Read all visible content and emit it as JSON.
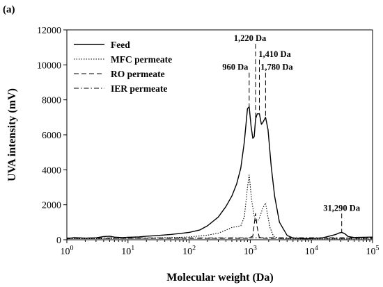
{
  "panel_label": "(a)",
  "chart_data": {
    "type": "line",
    "title": "",
    "xlabel": "Molecular weight (Da)",
    "ylabel": "UVA intensity (mV)",
    "xscale": "log",
    "xlim": [
      1,
      100000
    ],
    "ylim": [
      0,
      12000
    ],
    "x_ticks": [
      {
        "value": 1,
        "base": "10",
        "exp": "0"
      },
      {
        "value": 10,
        "base": "10",
        "exp": "1"
      },
      {
        "value": 100,
        "base": "10",
        "exp": "2"
      },
      {
        "value": 1000,
        "base": "10",
        "exp": "3"
      },
      {
        "value": 10000,
        "base": "10",
        "exp": "4"
      },
      {
        "value": 100000,
        "base": "10",
        "exp": "5"
      }
    ],
    "y_ticks": [
      {
        "value": 0,
        "label": "0"
      },
      {
        "value": 2000,
        "label": "2000"
      },
      {
        "value": 4000,
        "label": "4000"
      },
      {
        "value": 6000,
        "label": "6000"
      },
      {
        "value": 8000,
        "label": "8000"
      },
      {
        "value": 10000,
        "label": "10000"
      },
      {
        "value": 12000,
        "label": "12000"
      }
    ],
    "grid": false,
    "legend_position": "top-left",
    "series": [
      {
        "name": "Feed",
        "style": "solid",
        "points": [
          [
            1,
            50
          ],
          [
            1.3,
            120
          ],
          [
            2,
            90
          ],
          [
            3,
            110
          ],
          [
            4,
            180
          ],
          [
            5,
            200
          ],
          [
            6,
            150
          ],
          [
            8,
            120
          ],
          [
            10,
            140
          ],
          [
            15,
            160
          ],
          [
            20,
            200
          ],
          [
            30,
            240
          ],
          [
            50,
            300
          ],
          [
            80,
            380
          ],
          [
            100,
            420
          ],
          [
            150,
            560
          ],
          [
            200,
            800
          ],
          [
            300,
            1300
          ],
          [
            400,
            1900
          ],
          [
            500,
            2500
          ],
          [
            600,
            3200
          ],
          [
            700,
            4100
          ],
          [
            800,
            5600
          ],
          [
            900,
            7500
          ],
          [
            960,
            7600
          ],
          [
            1030,
            6500
          ],
          [
            1100,
            5800
          ],
          [
            1160,
            5900
          ],
          [
            1220,
            6900
          ],
          [
            1300,
            7200
          ],
          [
            1410,
            7200
          ],
          [
            1520,
            6600
          ],
          [
            1600,
            6700
          ],
          [
            1780,
            7000
          ],
          [
            1950,
            6300
          ],
          [
            2200,
            4200
          ],
          [
            2500,
            2500
          ],
          [
            3000,
            1000
          ],
          [
            4000,
            250
          ],
          [
            5000,
            100
          ],
          [
            8000,
            60
          ],
          [
            15000,
            100
          ],
          [
            25000,
            300
          ],
          [
            28000,
            380
          ],
          [
            31290,
            420
          ],
          [
            35000,
            350
          ],
          [
            40000,
            180
          ],
          [
            50000,
            130
          ],
          [
            100000,
            150
          ]
        ]
      },
      {
        "name": "MFC permeate",
        "style": "dotted",
        "points": [
          [
            1,
            60
          ],
          [
            3,
            60
          ],
          [
            10,
            80
          ],
          [
            50,
            120
          ],
          [
            100,
            160
          ],
          [
            200,
            260
          ],
          [
            300,
            380
          ],
          [
            400,
            550
          ],
          [
            500,
            700
          ],
          [
            700,
            800
          ],
          [
            800,
            1300
          ],
          [
            900,
            3000
          ],
          [
            960,
            3700
          ],
          [
            1050,
            2300
          ],
          [
            1150,
            1400
          ],
          [
            1250,
            1000
          ],
          [
            1400,
            1200
          ],
          [
            1600,
            1800
          ],
          [
            1780,
            2100
          ],
          [
            1900,
            1500
          ],
          [
            2100,
            700
          ],
          [
            2400,
            200
          ],
          [
            3000,
            60
          ],
          [
            10000,
            50
          ],
          [
            100000,
            50
          ]
        ]
      },
      {
        "name": "RO permeate",
        "style": "dashed",
        "points": [
          [
            1,
            80
          ],
          [
            10,
            80
          ],
          [
            100,
            80
          ],
          [
            500,
            80
          ],
          [
            900,
            80
          ],
          [
            1100,
            200
          ],
          [
            1220,
            1500
          ],
          [
            1300,
            700
          ],
          [
            1400,
            150
          ],
          [
            1600,
            80
          ],
          [
            10000,
            80
          ],
          [
            100000,
            80
          ]
        ]
      },
      {
        "name": "IER permeate",
        "style": "dashdot",
        "points": [
          [
            1,
            100
          ],
          [
            10,
            100
          ],
          [
            100,
            100
          ],
          [
            1000,
            110
          ],
          [
            10000,
            110
          ],
          [
            100000,
            110
          ]
        ]
      }
    ],
    "annotations": [
      {
        "label": "960 Da",
        "x": 960,
        "y": 7600,
        "line_top": 9550
      },
      {
        "label": "1,220 Da",
        "x": 1220,
        "y": 6900,
        "line_top": 11200
      },
      {
        "label": "1,410 Da",
        "x": 1410,
        "y": 7200,
        "line_top": 10300
      },
      {
        "label": "1,780 Da",
        "x": 1780,
        "y": 7000,
        "line_top": 9550
      },
      {
        "label": "31,290 Da",
        "x": 31290,
        "y": 420,
        "line_top": 1500
      }
    ]
  }
}
